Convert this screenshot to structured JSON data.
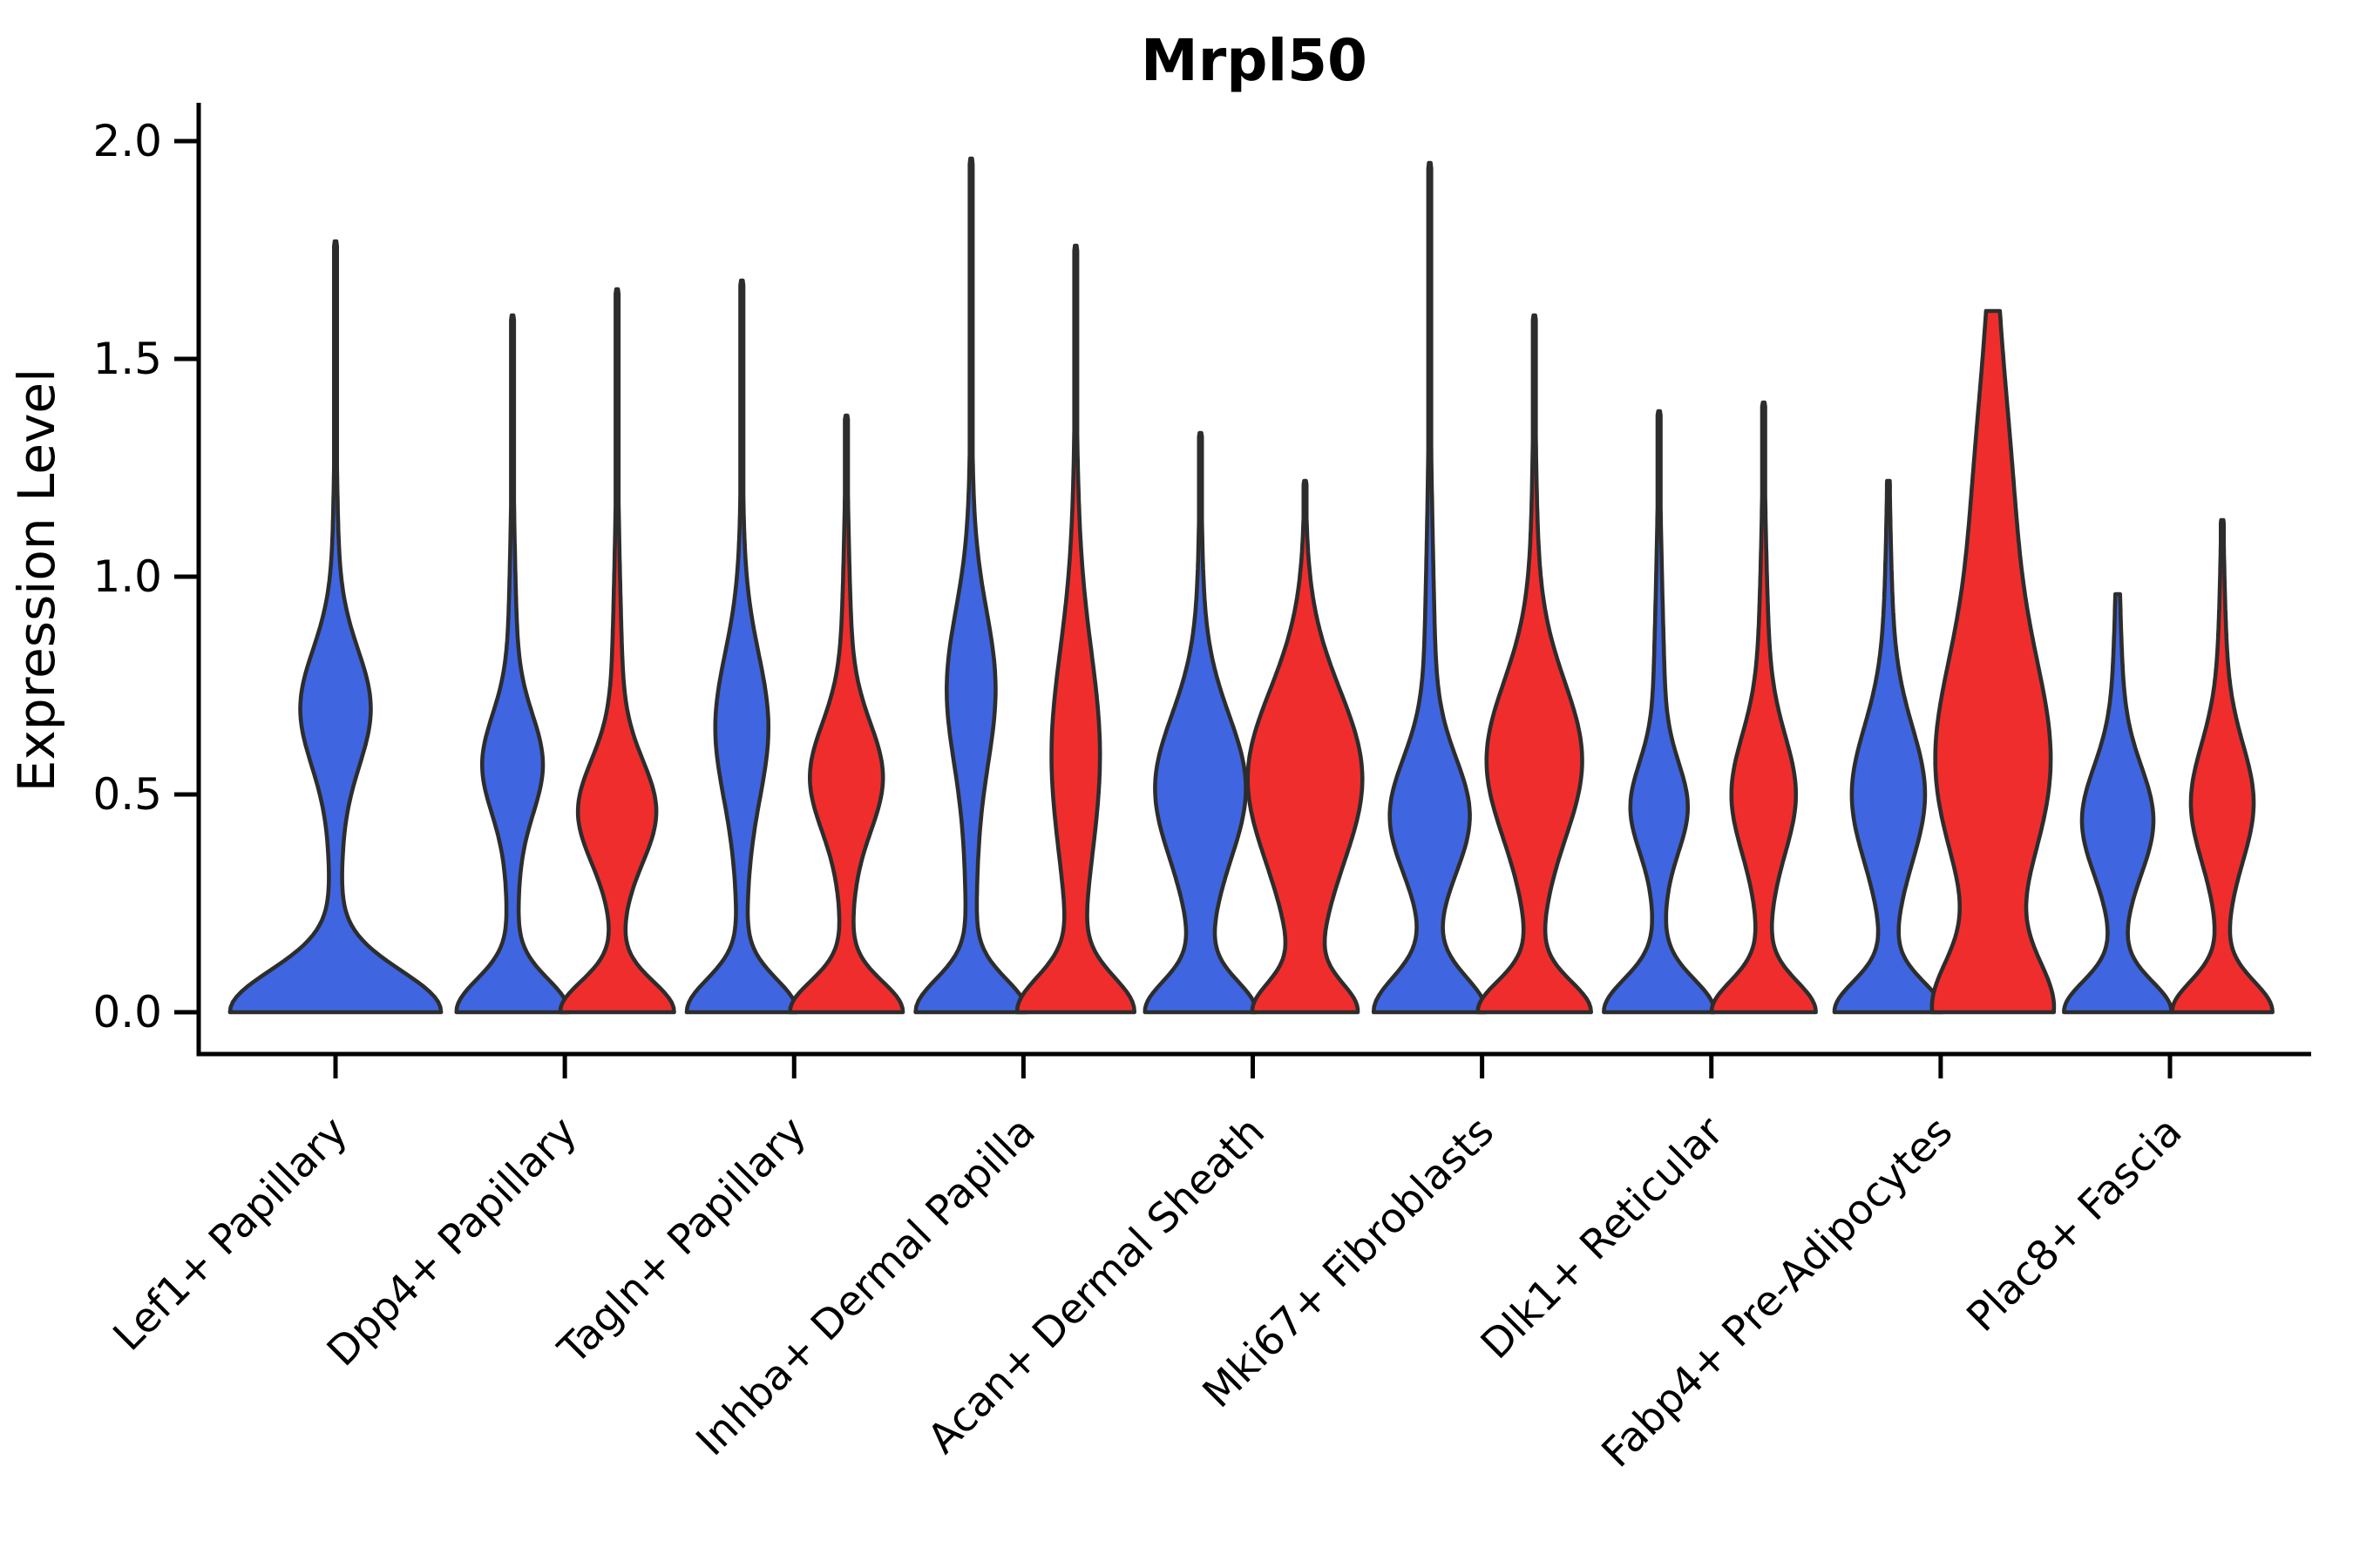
{
  "figure": {
    "title": "Mrpl50"
  },
  "chart_data": {
    "type": "violin",
    "title": "Mrpl50",
    "xlabel": "",
    "ylabel": "Expression Level",
    "ylim": [
      0,
      2.0
    ],
    "ytick_labels": [
      "0.0",
      "0.5",
      "1.0",
      "1.5",
      "2.0"
    ],
    "ytick_values": [
      0.0,
      0.5,
      1.0,
      1.5,
      2.0
    ],
    "grid": false,
    "legend": "none",
    "categories": [
      "Lef1+ Papillary",
      "Dpp4+ Papillary",
      "Tagln+ Papillary",
      "Inhba+ Dermal Papilla",
      "Acan+ Dermal Sheath",
      "Mki67+ Fibroblasts",
      "Dlk1+ Reticular",
      "Fabp4+ Pre-Adipocytes",
      "Plac8+ Fascia"
    ],
    "groups": [
      {
        "id": "blue",
        "color": "#3F66E0"
      },
      {
        "id": "red",
        "color": "#F02D2D"
      }
    ],
    "outline_color": "#2D2D2D",
    "profile_note": "Each violin is a KDE profile: half-width(v) = sum of gaussian components [mean_expression, sigma, halfwidth_px]; max = top of violin tail in expression units; single=true means violin is centered on the category tick.",
    "violins": [
      {
        "category": "Lef1+ Papillary",
        "group": "blue",
        "single": true,
        "max": 1.77,
        "flat_top": false,
        "components": [
          [
            0.0,
            0.095,
            118
          ],
          [
            0.7,
            0.13,
            33
          ],
          [
            0.55,
            0.4,
            8
          ]
        ]
      },
      {
        "category": "Dpp4+ Papillary",
        "group": "blue",
        "single": false,
        "max": 1.6,
        "flat_top": false,
        "components": [
          [
            0.0,
            0.075,
            61
          ],
          [
            0.57,
            0.11,
            27
          ],
          [
            0.5,
            0.38,
            8
          ]
        ]
      },
      {
        "category": "Dpp4+ Papillary",
        "group": "red",
        "single": false,
        "max": 1.66,
        "flat_top": false,
        "components": [
          [
            0.0,
            0.07,
            62
          ],
          [
            0.46,
            0.115,
            37
          ],
          [
            0.5,
            0.38,
            8
          ]
        ]
      },
      {
        "category": "Tagln+ Papillary",
        "group": "blue",
        "single": false,
        "max": 1.68,
        "flat_top": false,
        "components": [
          [
            0.0,
            0.075,
            60
          ],
          [
            0.66,
            0.16,
            24
          ],
          [
            0.5,
            0.4,
            7
          ]
        ]
      },
      {
        "category": "Tagln+ Papillary",
        "group": "red",
        "single": false,
        "max": 1.37,
        "flat_top": false,
        "components": [
          [
            0.0,
            0.07,
            61
          ],
          [
            0.54,
            0.12,
            33
          ],
          [
            0.5,
            0.38,
            9
          ]
        ]
      },
      {
        "category": "Inhba+ Dermal Papilla",
        "group": "blue",
        "single": false,
        "max": 1.96,
        "flat_top": false,
        "components": [
          [
            0.0,
            0.075,
            60
          ],
          [
            0.75,
            0.17,
            22
          ],
          [
            0.5,
            0.45,
            7
          ]
        ]
      },
      {
        "category": "Inhba+ Dermal Papilla",
        "group": "red",
        "single": false,
        "max": 1.76,
        "flat_top": false,
        "components": [
          [
            0.0,
            0.08,
            62
          ],
          [
            0.6,
            0.22,
            19
          ],
          [
            0.5,
            0.45,
            9
          ]
        ]
      },
      {
        "category": "Acan+ Dermal Sheath",
        "group": "blue",
        "single": false,
        "max": 1.33,
        "flat_top": false,
        "components": [
          [
            0.0,
            0.07,
            56
          ],
          [
            0.52,
            0.16,
            42
          ],
          [
            0.35,
            0.4,
            11
          ]
        ]
      },
      {
        "category": "Acan+ Dermal Sheath",
        "group": "red",
        "single": false,
        "max": 1.22,
        "flat_top": false,
        "components": [
          [
            0.0,
            0.065,
            50
          ],
          [
            0.55,
            0.19,
            52
          ],
          [
            0.35,
            0.35,
            16
          ]
        ]
      },
      {
        "category": "Mki67+ Fibroblasts",
        "group": "blue",
        "single": false,
        "max": 1.95,
        "flat_top": false,
        "components": [
          [
            0.0,
            0.08,
            60
          ],
          [
            0.45,
            0.13,
            38
          ],
          [
            0.5,
            0.45,
            8
          ]
        ]
      },
      {
        "category": "Mki67+ Fibroblasts",
        "group": "red",
        "single": false,
        "max": 1.6,
        "flat_top": false,
        "components": [
          [
            0.0,
            0.07,
            60
          ],
          [
            0.58,
            0.175,
            46
          ],
          [
            0.5,
            0.45,
            9
          ]
        ]
      },
      {
        "category": "Dlk1+ Reticular",
        "group": "blue",
        "single": false,
        "max": 1.38,
        "flat_top": false,
        "components": [
          [
            0.0,
            0.075,
            60
          ],
          [
            0.47,
            0.1,
            25
          ],
          [
            0.5,
            0.38,
            8
          ]
        ]
      },
      {
        "category": "Dlk1+ Reticular",
        "group": "red",
        "single": false,
        "max": 1.4,
        "flat_top": false,
        "components": [
          [
            0.0,
            0.07,
            56
          ],
          [
            0.5,
            0.13,
            28
          ],
          [
            0.5,
            0.38,
            9
          ]
        ]
      },
      {
        "category": "Fabp4+ Pre-Adipocytes",
        "group": "blue",
        "single": false,
        "max": 1.22,
        "flat_top": false,
        "components": [
          [
            0.0,
            0.07,
            58
          ],
          [
            0.5,
            0.15,
            33
          ],
          [
            0.5,
            0.38,
            9
          ]
        ]
      },
      {
        "category": "Fabp4+ Pre-Adipocytes",
        "group": "red",
        "single": false,
        "max": 1.61,
        "flat_top": true,
        "components": [
          [
            0.0,
            0.12,
            62
          ],
          [
            0.55,
            0.24,
            52
          ],
          [
            1.1,
            0.35,
            20
          ],
          [
            0.6,
            0.5,
            8
          ]
        ]
      },
      {
        "category": "Plac8+ Fascia",
        "group": "blue",
        "single": false,
        "max": 0.96,
        "flat_top": false,
        "components": [
          [
            0.0,
            0.07,
            58
          ],
          [
            0.44,
            0.12,
            32
          ],
          [
            0.45,
            0.33,
            9
          ]
        ]
      },
      {
        "category": "Plac8+ Fascia",
        "group": "red",
        "single": false,
        "max": 1.13,
        "flat_top": false,
        "components": [
          [
            0.0,
            0.07,
            55
          ],
          [
            0.48,
            0.13,
            28
          ],
          [
            0.5,
            0.33,
            8
          ]
        ]
      }
    ]
  }
}
